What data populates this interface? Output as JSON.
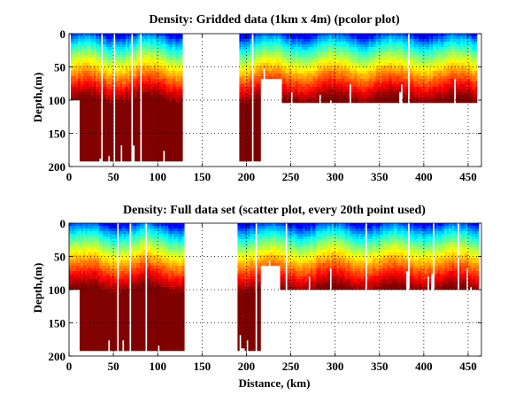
{
  "chart_data": [
    {
      "type": "heatmap",
      "title": "Density: Gridded data (1km x 4m) (pcolor plot)",
      "xlabel": "",
      "ylabel": "Depth,(m)",
      "xlim": [
        0,
        465
      ],
      "ylim": [
        200,
        0
      ],
      "y_reversed": true,
      "xticks": [
        0,
        50,
        100,
        150,
        200,
        250,
        300,
        350,
        400,
        450
      ],
      "yticks": [
        0,
        50,
        100,
        150,
        200
      ],
      "grid": true,
      "colormap": "jet",
      "coverage": [
        {
          "x_start": 0,
          "x_end": 12,
          "max_depth": 100
        },
        {
          "x_start": 12,
          "x_end": 130,
          "max_depth": 192
        },
        {
          "x_start": 192,
          "x_end": 215,
          "max_depth": 192
        },
        {
          "x_start": 215,
          "x_end": 240,
          "max_depth": 65
        },
        {
          "x_start": 240,
          "x_end": 462,
          "max_depth": 104
        }
      ]
    },
    {
      "type": "heatmap",
      "title": "Density: Full data set (scatter plot, every 20th point used)",
      "xlabel": "Distance, (km)",
      "ylabel": "Depth,(m)",
      "xlim": [
        0,
        465
      ],
      "ylim": [
        200,
        0
      ],
      "y_reversed": true,
      "xticks": [
        0,
        50,
        100,
        150,
        200,
        250,
        300,
        350,
        400,
        450
      ],
      "yticks": [
        0,
        50,
        100,
        150,
        200
      ],
      "grid": true,
      "colormap": "jet",
      "coverage": [
        {
          "x_start": 0,
          "x_end": 12,
          "max_depth": 100
        },
        {
          "x_start": 12,
          "x_end": 130,
          "max_depth": 190
        },
        {
          "x_start": 190,
          "x_end": 215,
          "max_depth": 190
        },
        {
          "x_start": 215,
          "x_end": 238,
          "max_depth": 62
        },
        {
          "x_start": 238,
          "x_end": 462,
          "max_depth": 100
        }
      ]
    }
  ]
}
